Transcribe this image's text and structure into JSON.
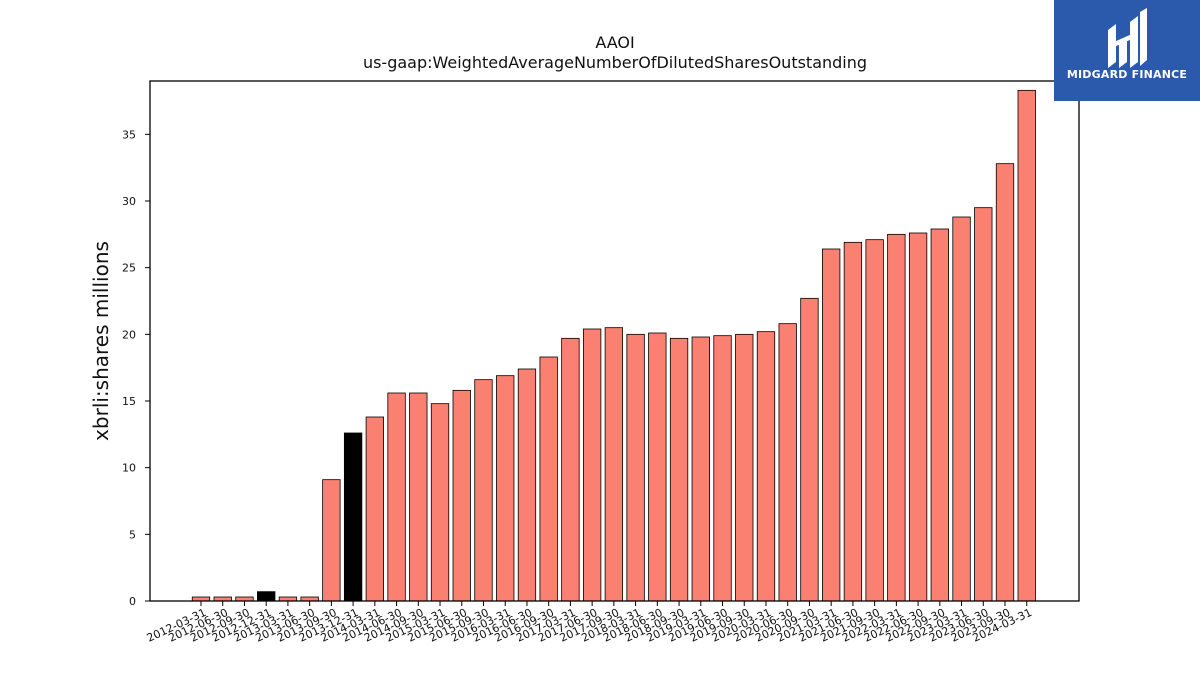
{
  "chart_data": {
    "type": "bar",
    "title": "AAOI",
    "subtitle": "us-gaap:WeightedAverageNumberOfDilutedSharesOutstanding",
    "ylabel": "xbrli:shares millions",
    "xlabel": "",
    "ylim": [
      0,
      39
    ],
    "yticks": [
      0,
      5,
      10,
      15,
      20,
      25,
      30,
      35
    ],
    "grid": false,
    "categories": [
      "2012-03-31",
      "2012-06-30",
      "2012-09-30",
      "2012-12-31",
      "2013-03-31",
      "2013-06-30",
      "2013-09-30",
      "2013-12-31",
      "2014-03-31",
      "2014-06-30",
      "2014-09-30",
      "2015-03-31",
      "2015-06-30",
      "2015-09-30",
      "2016-03-31",
      "2016-06-30",
      "2016-09-30",
      "2017-03-31",
      "2017-06-30",
      "2017-09-30",
      "2018-03-31",
      "2018-06-30",
      "2018-09-30",
      "2019-03-31",
      "2019-06-30",
      "2019-09-30",
      "2020-03-31",
      "2020-06-30",
      "2020-09-30",
      "2021-03-31",
      "2021-06-30",
      "2021-09-30",
      "2022-03-31",
      "2022-06-30",
      "2022-09-30",
      "2023-03-31",
      "2023-06-30",
      "2023-09-30",
      "2024-03-31"
    ],
    "values": [
      0.3,
      0.3,
      0.3,
      0.7,
      0.3,
      0.3,
      9.1,
      12.6,
      13.8,
      15.6,
      15.6,
      14.8,
      15.8,
      16.6,
      16.9,
      17.4,
      18.3,
      19.7,
      20.4,
      20.5,
      20.0,
      20.1,
      19.7,
      19.8,
      19.9,
      20.0,
      20.2,
      20.8,
      22.7,
      26.4,
      26.9,
      27.1,
      27.5,
      27.6,
      27.9,
      28.8,
      29.5,
      32.8,
      38.3
    ],
    "highlight_indices": [
      3,
      7
    ],
    "colors": {
      "bar": "#fa8072",
      "highlight": "#000000",
      "edge": "#000000"
    }
  },
  "logo": {
    "text": "MIDGARD FINANCE",
    "background": "#2b5aad"
  }
}
